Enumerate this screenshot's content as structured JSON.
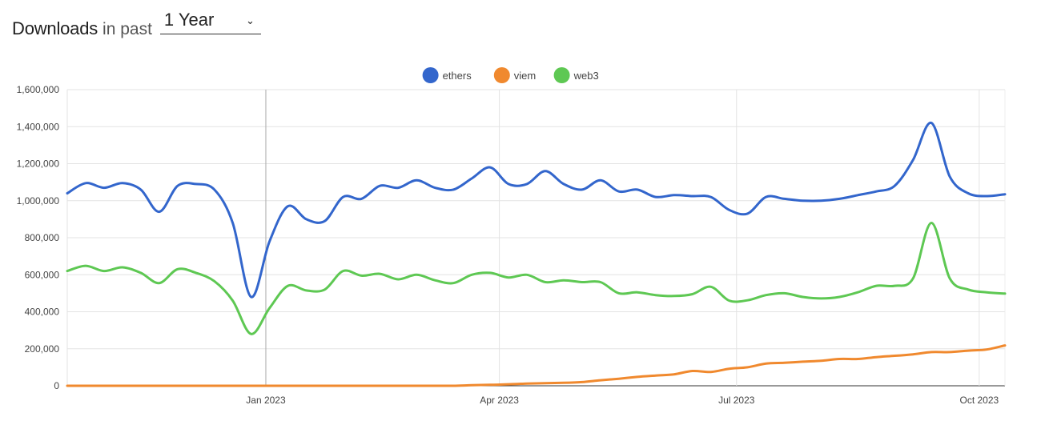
{
  "header": {
    "title": "Downloads",
    "subtitle": "in past",
    "period": "1 Year",
    "chevron_icon": "chevron-down-icon"
  },
  "chart_data": {
    "type": "line",
    "title": "",
    "xlabel": "",
    "ylabel": "",
    "ylim": [
      0,
      1600000
    ],
    "yticks": [
      0,
      200000,
      400000,
      600000,
      800000,
      1000000,
      1200000,
      1400000,
      1600000
    ],
    "ytick_labels": [
      "0",
      "200,000",
      "400,000",
      "600,000",
      "800,000",
      "1,000,000",
      "1,200,000",
      "1,400,000",
      "1,600,000"
    ],
    "xlim": [
      0,
      51
    ],
    "xticks": [
      {
        "x": 10.8,
        "label": "Jan 2023"
      },
      {
        "x": 23.5,
        "label": "Apr 2023"
      },
      {
        "x": 36.4,
        "label": "Jul 2023"
      },
      {
        "x": 49.6,
        "label": "Oct 2023"
      }
    ],
    "legend_position": "top-center",
    "grid": true,
    "series": [
      {
        "name": "ethers",
        "color": "#3366cc",
        "values": [
          1040000,
          1095000,
          1070000,
          1095000,
          1060000,
          940000,
          1080000,
          1090000,
          1060000,
          880000,
          480000,
          780000,
          970000,
          900000,
          890000,
          1020000,
          1010000,
          1080000,
          1070000,
          1110000,
          1070000,
          1060000,
          1120000,
          1180000,
          1090000,
          1090000,
          1160000,
          1090000,
          1060000,
          1110000,
          1050000,
          1060000,
          1020000,
          1030000,
          1025000,
          1020000,
          950000,
          930000,
          1020000,
          1010000,
          1000000,
          1000000,
          1010000,
          1030000,
          1050000,
          1080000,
          1220000,
          1420000,
          1130000,
          1040000,
          1025000,
          1035000
        ]
      },
      {
        "name": "viem",
        "color": "#f0892e",
        "values": [
          0,
          0,
          0,
          0,
          0,
          0,
          0,
          0,
          0,
          0,
          0,
          0,
          0,
          0,
          0,
          0,
          0,
          0,
          0,
          0,
          0,
          0,
          3000,
          5000,
          8000,
          12000,
          14000,
          16000,
          20000,
          30000,
          38000,
          48000,
          55000,
          62000,
          80000,
          75000,
          92000,
          100000,
          120000,
          124000,
          130000,
          135000,
          145000,
          145000,
          155000,
          162000,
          170000,
          182000,
          182000,
          190000,
          196000,
          218000
        ]
      },
      {
        "name": "web3",
        "color": "#5ec853",
        "values": [
          620000,
          648000,
          620000,
          640000,
          610000,
          555000,
          630000,
          610000,
          565000,
          460000,
          280000,
          420000,
          540000,
          515000,
          520000,
          620000,
          595000,
          605000,
          575000,
          600000,
          570000,
          555000,
          600000,
          610000,
          585000,
          600000,
          560000,
          570000,
          560000,
          560000,
          500000,
          505000,
          490000,
          485000,
          495000,
          535000,
          460000,
          462000,
          490000,
          500000,
          480000,
          472000,
          480000,
          505000,
          540000,
          540000,
          580000,
          880000,
          580000,
          520000,
          505000,
          498000
        ]
      }
    ]
  }
}
